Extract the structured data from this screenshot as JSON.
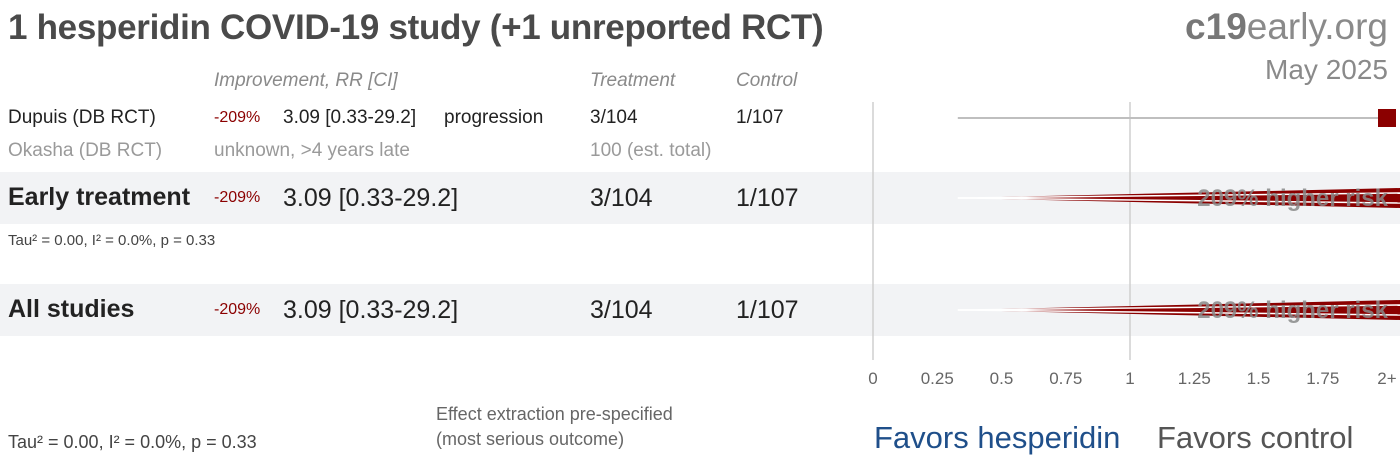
{
  "title": "1 hesperidin COVID-19 study (+1 unreported RCT)",
  "logo": {
    "brand_bold": "c19",
    "brand_rest": "early.org"
  },
  "date": "May 2025",
  "headers": {
    "improvement": "Improvement, RR [CI]",
    "treatment": "Treatment",
    "control": "Control"
  },
  "studies": [
    {
      "name": "Dupuis (DB RCT)",
      "pct": "-209%",
      "rr": "3.09 [0.33-29.2]",
      "outcome": "progression",
      "treatment": "3/104",
      "control": "1/107"
    },
    {
      "name": "Okasha (DB RCT)",
      "status": "unknown, >4 years late",
      "treatment": "100 (est. total)"
    }
  ],
  "early": {
    "label": "Early treatment",
    "pct": "-209%",
    "rr": "3.09 [0.33-29.2]",
    "treatment": "3/104",
    "control": "1/107",
    "stats": "Tau² = 0.00, I² = 0.0%, p = 0.33",
    "risk_label": "209% higher risk"
  },
  "all": {
    "label": "All studies",
    "pct": "-209%",
    "rr": "3.09 [0.33-29.2]",
    "treatment": "3/104",
    "control": "1/107",
    "risk_label": "209% higher risk"
  },
  "footer": {
    "stats": "Tau² = 0.00, I² = 0.0%, p = 0.33",
    "note_line1": "Effect extraction pre-specified",
    "note_line2": "(most serious outcome)",
    "favors_left": "Favors hesperidin",
    "favors_right": "Favors control"
  },
  "chart_data": {
    "type": "forest",
    "x_ticks": [
      "0",
      "0.25",
      "0.5",
      "0.75",
      "1",
      "1.25",
      "1.5",
      "1.75",
      "2+"
    ],
    "x_tick_values": [
      0,
      0.25,
      0.5,
      0.75,
      1,
      1.25,
      1.5,
      1.75,
      2
    ],
    "xlim": [
      0,
      2
    ],
    "reference_line": 1,
    "rows": [
      {
        "kind": "study",
        "name": "Dupuis (DB RCT)",
        "rr": 3.09,
        "ci": [
          0.33,
          29.2
        ]
      },
      {
        "kind": "pooled",
        "name": "Early treatment",
        "rr": 3.09,
        "ci": [
          0.33,
          29.2
        ]
      },
      {
        "kind": "pooled",
        "name": "All studies",
        "rr": 3.09,
        "ci": [
          0.33,
          29.2
        ]
      }
    ],
    "colors": {
      "effect": "#8b0000",
      "axis": "#cfcfcf",
      "ci": "#bfbfbf"
    }
  }
}
